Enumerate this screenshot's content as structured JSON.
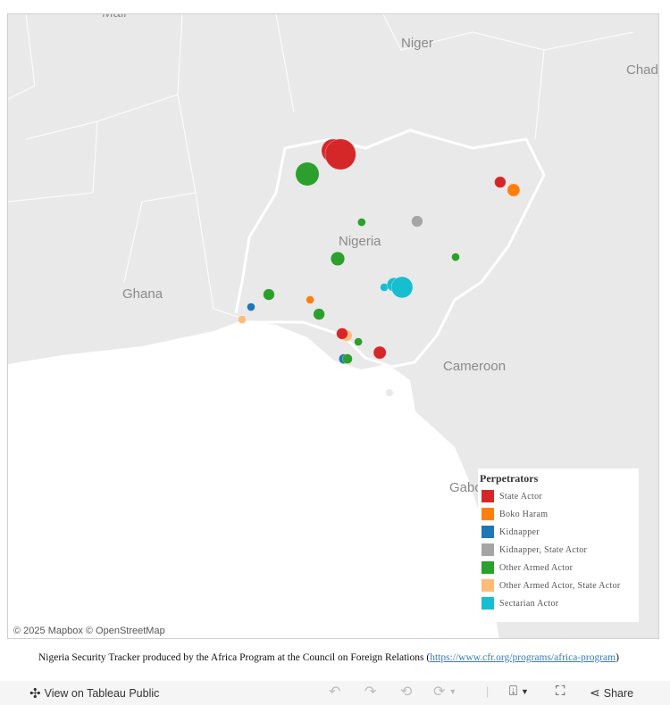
{
  "map": {
    "country_labels": [
      "Mali",
      "Niger",
      "Chad",
      "Nigeria",
      "Ghana",
      "Cameroon",
      "Gabon"
    ],
    "attribution": "© 2025 Mapbox © OpenStreetMap",
    "marks": [
      {
        "category": "State Actor",
        "lon": 6.67,
        "lat": 13.48,
        "size": 17
      },
      {
        "category": "State Actor",
        "lon": 6.93,
        "lat": 13.33,
        "size": 29
      },
      {
        "category": "Other Armed Actor",
        "lon": 5.74,
        "lat": 12.51,
        "size": 17
      },
      {
        "category": "State Actor",
        "lon": 12.66,
        "lat": 12.17,
        "size": 4
      },
      {
        "category": "Boko Haram",
        "lon": 13.14,
        "lat": 11.84,
        "size": 5
      },
      {
        "category": "Other Armed Actor",
        "lon": 7.69,
        "lat": 10.5,
        "size": 2
      },
      {
        "category": "Kidnapper, State Actor",
        "lon": 9.68,
        "lat": 10.54,
        "size": 4
      },
      {
        "category": "Other Armed Actor",
        "lon": 6.83,
        "lat": 8.98,
        "size": 6
      },
      {
        "category": "Other Armed Actor",
        "lon": 11.06,
        "lat": 9.05,
        "size": 2
      },
      {
        "category": "Sectarian Actor",
        "lon": 8.5,
        "lat": 7.79,
        "size": 2
      },
      {
        "category": "Sectarian Actor",
        "lon": 8.85,
        "lat": 7.9,
        "size": 6
      },
      {
        "category": "Sectarian Actor",
        "lon": 9.14,
        "lat": 7.79,
        "size": 14
      },
      {
        "category": "Other Armed Actor",
        "lon": 4.36,
        "lat": 7.49,
        "size": 4
      },
      {
        "category": "Boko Haram",
        "lon": 5.84,
        "lat": 7.27,
        "size": 2
      },
      {
        "category": "Kidnapper",
        "lon": 3.72,
        "lat": 6.97,
        "size": 2
      },
      {
        "category": "Other Armed Actor, State Actor",
        "lon": 3.4,
        "lat": 6.45,
        "size": 2
      },
      {
        "category": "Other Armed Actor",
        "lon": 6.16,
        "lat": 6.67,
        "size": 4
      },
      {
        "category": "Other Armed Actor, State Actor",
        "lon": 7.15,
        "lat": 5.78,
        "size": 4
      },
      {
        "category": "State Actor",
        "lon": 6.99,
        "lat": 5.86,
        "size": 4
      },
      {
        "category": "Other Armed Actor",
        "lon": 7.57,
        "lat": 5.52,
        "size": 2
      },
      {
        "category": "State Actor",
        "lon": 8.34,
        "lat": 5.07,
        "size": 5
      },
      {
        "category": "Kidnapper",
        "lon": 7.05,
        "lat": 4.81,
        "size": 3
      },
      {
        "category": "Other Armed Actor",
        "lon": 7.18,
        "lat": 4.81,
        "size": 3
      }
    ]
  },
  "legend": {
    "title": "Perpetrators",
    "items": [
      {
        "label": "State Actor",
        "color": "#d62728"
      },
      {
        "label": "Boko Haram",
        "color": "#ff7f0e"
      },
      {
        "label": "Kidnapper",
        "color": "#1f77b4"
      },
      {
        "label": "Kidnapper, State Actor",
        "color": "#a5a5a5"
      },
      {
        "label": "Other Armed Actor",
        "color": "#2ca02c"
      },
      {
        "label": "Other Armed Actor, State Actor",
        "color": "#ffbb78"
      },
      {
        "label": "Sectarian Actor",
        "color": "#17becf"
      }
    ]
  },
  "caption": {
    "text": "Nigeria Security Tracker produced by the Africa Program at the Council on Foreign Relations (",
    "link": "https://www.cfr.org/programs/africa-program",
    "close": ")"
  },
  "toolbar": {
    "view_label": "View on Tableau Public",
    "share_label": "Share"
  }
}
